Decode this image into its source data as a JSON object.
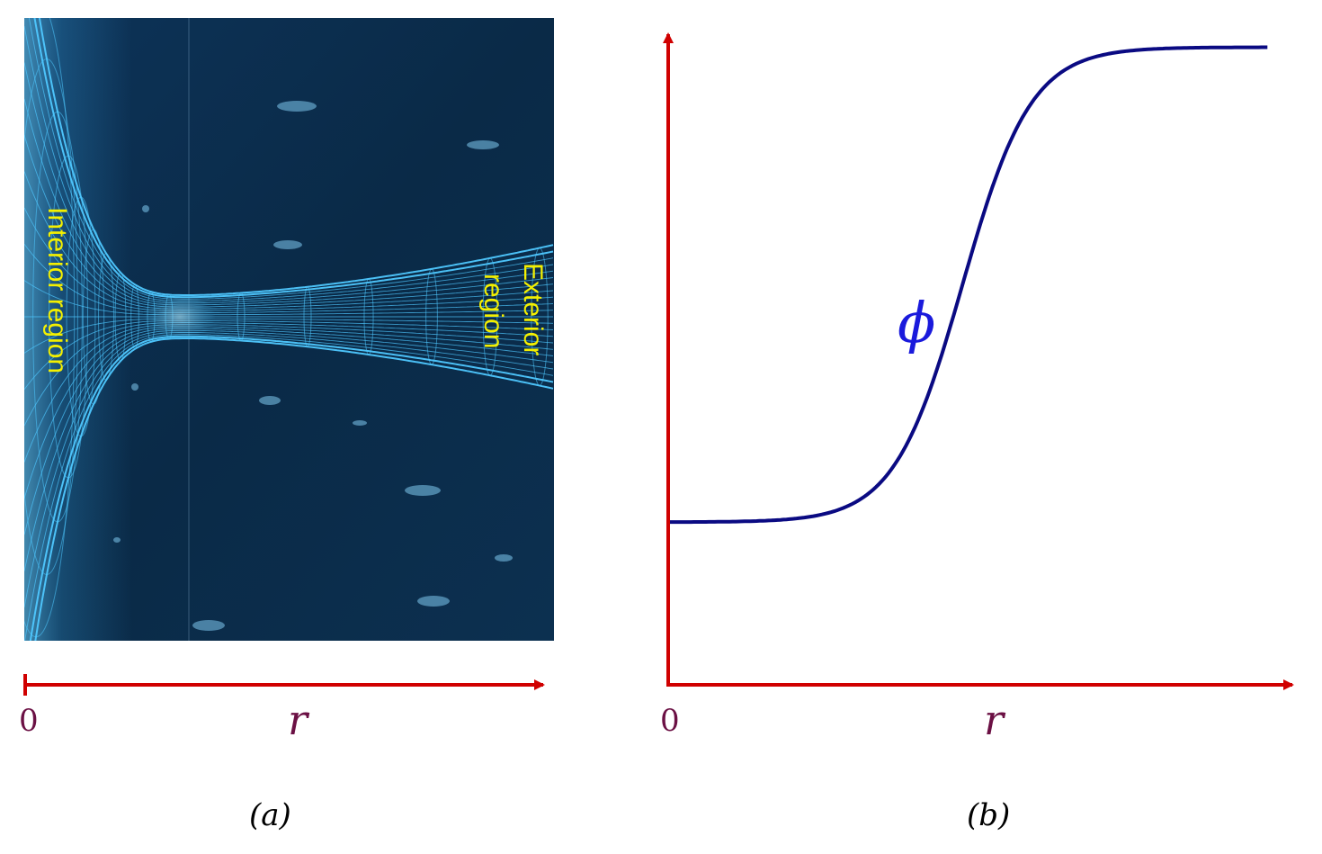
{
  "panel_a": {
    "interior_label": "Interior region",
    "exterior_label_line1": "Exterior",
    "exterior_label_line2": "region",
    "axis_origin": "0",
    "axis_variable": "r",
    "caption": "(a)",
    "background_color": "#0b2d4d",
    "mesh_color": "#4fc8ff"
  },
  "panel_b": {
    "axis_origin": "0",
    "axis_variable": "r",
    "curve_label": "ϕ",
    "caption": "(b)",
    "axis_color": "#d00000",
    "curve_color": "#0a0a82",
    "chart_data": {
      "type": "line",
      "shape": "sigmoid step from low plateau to high plateau",
      "x_range": [
        0,
        1
      ],
      "y_range": [
        0,
        1
      ],
      "low_plateau": 0.25,
      "high_plateau": 0.98,
      "transition_center": 0.47
    }
  }
}
